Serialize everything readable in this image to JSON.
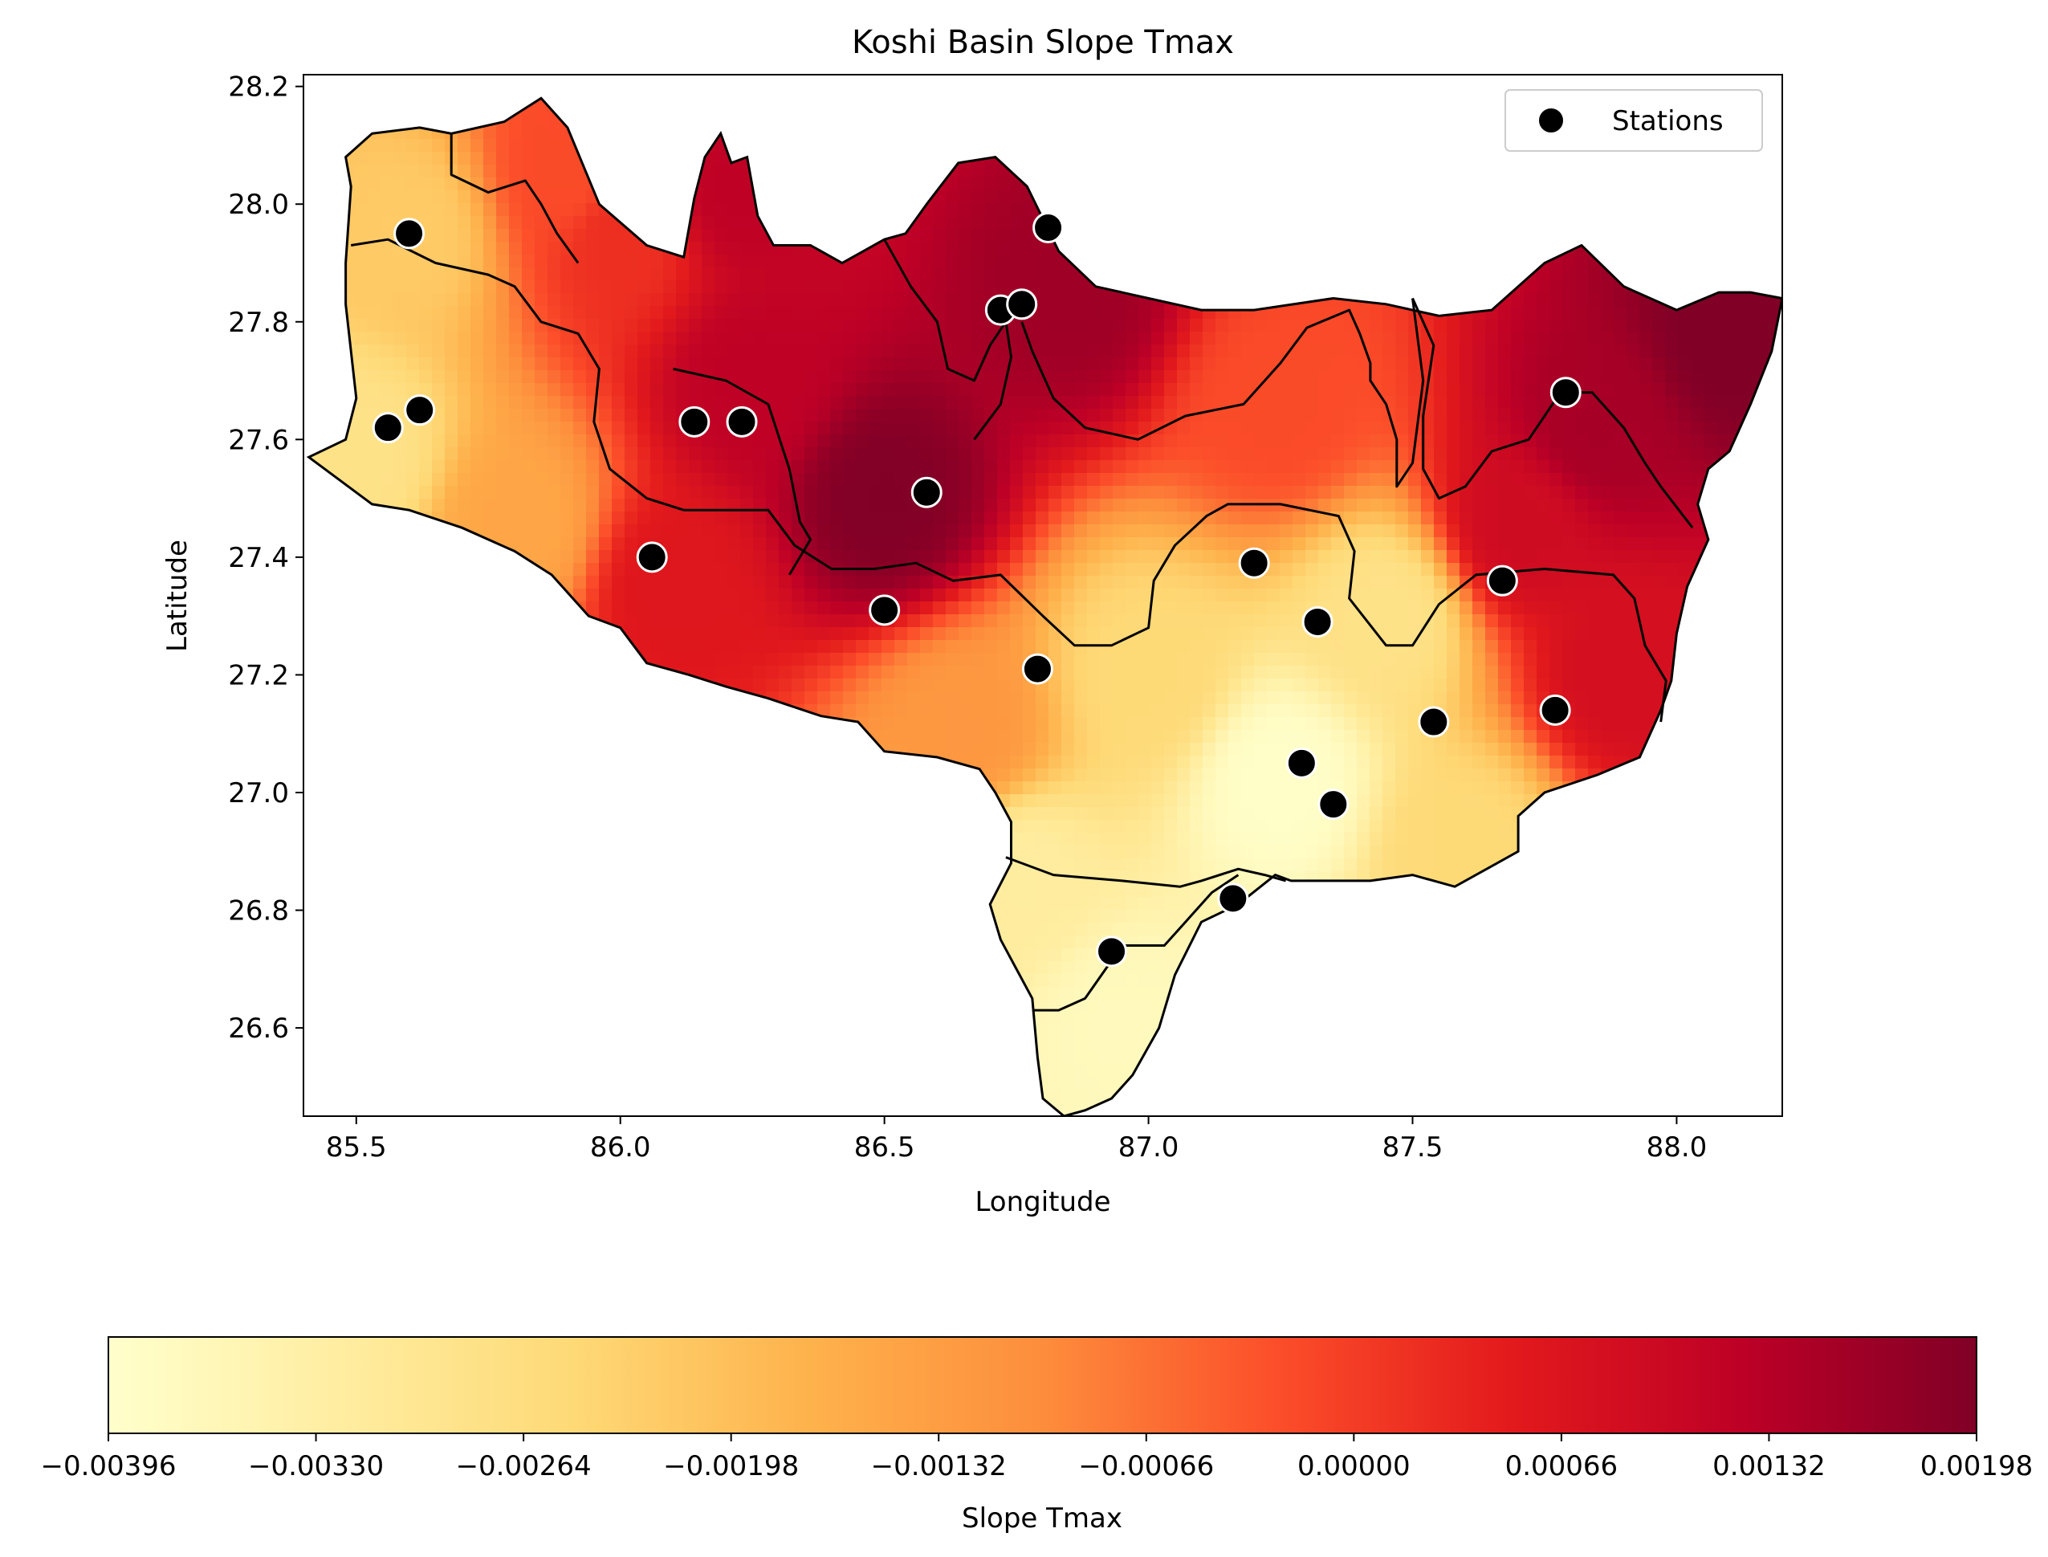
{
  "title": "Koshi Basin Slope Tmax",
  "map": {
    "xlabel": "Longitude",
    "ylabel": "Latitude",
    "xlim": [
      85.4,
      88.2
    ],
    "ylim": [
      26.45,
      28.22
    ],
    "xticks": [
      {
        "value": 85.5,
        "label": "85.5"
      },
      {
        "value": 86.0,
        "label": "86.0"
      },
      {
        "value": 86.5,
        "label": "86.5"
      },
      {
        "value": 87.0,
        "label": "87.0"
      },
      {
        "value": 87.5,
        "label": "87.5"
      },
      {
        "value": 88.0,
        "label": "88.0"
      }
    ],
    "yticks": [
      {
        "value": 26.6,
        "label": "26.6"
      },
      {
        "value": 26.8,
        "label": "26.8"
      },
      {
        "value": 27.0,
        "label": "27.0"
      },
      {
        "value": 27.2,
        "label": "27.2"
      },
      {
        "value": 27.4,
        "label": "27.4"
      },
      {
        "value": 27.6,
        "label": "27.6"
      },
      {
        "value": 27.8,
        "label": "27.8"
      },
      {
        "value": 28.0,
        "label": "28.0"
      },
      {
        "value": 28.2,
        "label": "28.2"
      }
    ],
    "legend": {
      "label": "Stations",
      "position": "upper right",
      "marker_color": "#000000"
    }
  },
  "chart_data": {
    "type": "heatmap",
    "title": "Koshi Basin Slope Tmax",
    "xlabel": "Longitude",
    "ylabel": "Latitude",
    "xlim": [
      85.4,
      88.2
    ],
    "ylim": [
      26.45,
      28.22
    ],
    "colormap": "YlOrRd",
    "value_label": "Slope Tmax",
    "value_range": [
      -0.00396,
      0.00198
    ],
    "basin_boundary": [
      [
        85.41,
        27.57
      ],
      [
        85.48,
        27.6
      ],
      [
        85.5,
        27.67
      ],
      [
        85.48,
        27.83
      ],
      [
        85.48,
        27.9
      ],
      [
        85.49,
        28.03
      ],
      [
        85.48,
        28.08
      ],
      [
        85.53,
        28.12
      ],
      [
        85.62,
        28.13
      ],
      [
        85.68,
        28.12
      ],
      [
        85.78,
        28.14
      ],
      [
        85.85,
        28.18
      ],
      [
        85.9,
        28.13
      ],
      [
        85.96,
        28.0
      ],
      [
        86.05,
        27.93
      ],
      [
        86.12,
        27.91
      ],
      [
        86.14,
        28.01
      ],
      [
        86.16,
        28.08
      ],
      [
        86.19,
        28.12
      ],
      [
        86.21,
        28.07
      ],
      [
        86.24,
        28.08
      ],
      [
        86.26,
        27.98
      ],
      [
        86.29,
        27.93
      ],
      [
        86.36,
        27.93
      ],
      [
        86.42,
        27.9
      ],
      [
        86.5,
        27.94
      ],
      [
        86.54,
        27.95
      ],
      [
        86.58,
        28.0
      ],
      [
        86.64,
        28.07
      ],
      [
        86.71,
        28.08
      ],
      [
        86.77,
        28.03
      ],
      [
        86.83,
        27.92
      ],
      [
        86.9,
        27.86
      ],
      [
        87.0,
        27.84
      ],
      [
        87.1,
        27.82
      ],
      [
        87.2,
        27.82
      ],
      [
        87.35,
        27.84
      ],
      [
        87.45,
        27.83
      ],
      [
        87.55,
        27.81
      ],
      [
        87.65,
        27.82
      ],
      [
        87.75,
        27.9
      ],
      [
        87.82,
        27.93
      ],
      [
        87.9,
        27.86
      ],
      [
        88.0,
        27.82
      ],
      [
        88.08,
        27.85
      ],
      [
        88.14,
        27.85
      ],
      [
        88.2,
        27.84
      ],
      [
        88.18,
        27.75
      ],
      [
        88.14,
        27.66
      ],
      [
        88.1,
        27.58
      ],
      [
        88.06,
        27.55
      ],
      [
        88.04,
        27.49
      ],
      [
        88.06,
        27.43
      ],
      [
        88.02,
        27.35
      ],
      [
        88.0,
        27.27
      ],
      [
        87.99,
        27.19
      ],
      [
        87.97,
        27.14
      ],
      [
        87.93,
        27.06
      ],
      [
        87.85,
        27.03
      ],
      [
        87.75,
        27.0
      ],
      [
        87.7,
        26.96
      ],
      [
        87.7,
        26.9
      ],
      [
        87.66,
        26.88
      ],
      [
        87.58,
        26.84
      ],
      [
        87.5,
        26.86
      ],
      [
        87.42,
        26.85
      ],
      [
        87.35,
        26.85
      ],
      [
        87.27,
        26.85
      ],
      [
        87.24,
        26.86
      ],
      [
        87.17,
        26.81
      ],
      [
        87.1,
        26.78
      ],
      [
        87.05,
        26.69
      ],
      [
        87.02,
        26.6
      ],
      [
        86.97,
        26.52
      ],
      [
        86.93,
        26.48
      ],
      [
        86.88,
        26.46
      ],
      [
        86.84,
        26.45
      ],
      [
        86.8,
        26.48
      ],
      [
        86.79,
        26.55
      ],
      [
        86.78,
        26.65
      ],
      [
        86.72,
        26.75
      ],
      [
        86.7,
        26.81
      ],
      [
        86.74,
        26.88
      ],
      [
        86.74,
        26.95
      ],
      [
        86.71,
        27.0
      ],
      [
        86.68,
        27.04
      ],
      [
        86.6,
        27.06
      ],
      [
        86.5,
        27.07
      ],
      [
        86.45,
        27.12
      ],
      [
        86.38,
        27.13
      ],
      [
        86.28,
        27.16
      ],
      [
        86.2,
        27.18
      ],
      [
        86.13,
        27.2
      ],
      [
        86.05,
        27.22
      ],
      [
        86.0,
        27.28
      ],
      [
        85.94,
        27.3
      ],
      [
        85.87,
        27.37
      ],
      [
        85.8,
        27.41
      ],
      [
        85.7,
        27.45
      ],
      [
        85.6,
        27.48
      ],
      [
        85.53,
        27.49
      ],
      [
        85.47,
        27.53
      ],
      [
        85.41,
        27.57
      ]
    ],
    "internal_boundaries": [
      [
        [
          85.49,
          27.93
        ],
        [
          85.56,
          27.94
        ],
        [
          85.65,
          27.9
        ],
        [
          85.75,
          27.88
        ],
        [
          85.8,
          27.86
        ],
        [
          85.85,
          27.8
        ],
        [
          85.92,
          27.78
        ],
        [
          85.96,
          27.72
        ],
        [
          85.95,
          27.63
        ],
        [
          85.98,
          27.55
        ],
        [
          86.05,
          27.5
        ],
        [
          86.12,
          27.48
        ],
        [
          86.2,
          27.48
        ],
        [
          86.28,
          27.48
        ],
        [
          86.33,
          27.42
        ],
        [
          86.4,
          27.38
        ],
        [
          86.48,
          27.38
        ],
        [
          86.56,
          27.39
        ],
        [
          86.63,
          27.36
        ],
        [
          86.72,
          27.37
        ],
        [
          86.8,
          27.3
        ],
        [
          86.86,
          27.25
        ],
        [
          86.93,
          27.25
        ],
        [
          87.0,
          27.28
        ],
        [
          87.01,
          27.36
        ],
        [
          87.05,
          27.42
        ],
        [
          87.11,
          27.47
        ],
        [
          87.15,
          27.49
        ],
        [
          87.25,
          27.49
        ],
        [
          87.36,
          27.47
        ],
        [
          87.39,
          27.41
        ],
        [
          87.38,
          27.33
        ],
        [
          87.45,
          27.25
        ],
        [
          87.5,
          27.25
        ],
        [
          87.55,
          27.32
        ],
        [
          87.62,
          27.37
        ],
        [
          87.75,
          27.38
        ],
        [
          87.88,
          27.37
        ],
        [
          87.92,
          27.33
        ],
        [
          87.94,
          27.25
        ],
        [
          87.98,
          27.19
        ],
        [
          87.97,
          27.12
        ]
      ],
      [
        [
          85.68,
          28.12
        ],
        [
          85.68,
          28.05
        ],
        [
          85.75,
          28.02
        ],
        [
          85.82,
          28.04
        ],
        [
          85.85,
          28.0
        ],
        [
          85.88,
          27.95
        ],
        [
          85.92,
          27.9
        ]
      ],
      [
        [
          86.1,
          27.72
        ],
        [
          86.2,
          27.7
        ],
        [
          86.28,
          27.66
        ],
        [
          86.32,
          27.55
        ],
        [
          86.34,
          27.46
        ],
        [
          86.36,
          27.43
        ],
        [
          86.32,
          27.37
        ]
      ],
      [
        [
          86.5,
          27.94
        ],
        [
          86.55,
          27.86
        ],
        [
          86.6,
          27.8
        ],
        [
          86.62,
          27.72
        ],
        [
          86.67,
          27.7
        ],
        [
          86.7,
          27.76
        ],
        [
          86.73,
          27.8
        ],
        [
          86.74,
          27.74
        ],
        [
          86.72,
          27.66
        ],
        [
          86.67,
          27.6
        ]
      ],
      [
        [
          86.76,
          27.8
        ],
        [
          86.78,
          27.75
        ],
        [
          86.82,
          27.67
        ],
        [
          86.88,
          27.62
        ],
        [
          86.98,
          27.6
        ],
        [
          87.07,
          27.64
        ],
        [
          87.18,
          27.66
        ],
        [
          87.25,
          27.73
        ],
        [
          87.3,
          27.79
        ],
        [
          87.38,
          27.82
        ],
        [
          87.4,
          27.78
        ],
        [
          87.42,
          27.73
        ],
        [
          87.42,
          27.7
        ],
        [
          87.45,
          27.66
        ],
        [
          87.47,
          27.6
        ],
        [
          87.47,
          27.52
        ],
        [
          87.5,
          27.56
        ],
        [
          87.52,
          27.7
        ],
        [
          87.5,
          27.84
        ]
      ],
      [
        [
          87.5,
          27.84
        ],
        [
          87.54,
          27.76
        ],
        [
          87.52,
          27.64
        ],
        [
          87.52,
          27.55
        ],
        [
          87.55,
          27.5
        ],
        [
          87.6,
          27.52
        ],
        [
          87.65,
          27.58
        ],
        [
          87.72,
          27.6
        ],
        [
          87.78,
          27.68
        ],
        [
          87.84,
          27.68
        ],
        [
          87.9,
          27.62
        ],
        [
          87.94,
          27.56
        ],
        [
          87.97,
          27.52
        ],
        [
          88.03,
          27.45
        ]
      ],
      [
        [
          86.73,
          26.89
        ],
        [
          86.82,
          26.86
        ],
        [
          86.95,
          26.85
        ],
        [
          87.06,
          26.84
        ],
        [
          87.1,
          26.85
        ],
        [
          87.17,
          26.87
        ],
        [
          87.22,
          26.86
        ],
        [
          87.26,
          26.85
        ]
      ],
      [
        [
          86.78,
          26.63
        ],
        [
          86.83,
          26.63
        ],
        [
          86.88,
          26.65
        ],
        [
          86.95,
          26.74
        ],
        [
          87.03,
          26.74
        ],
        [
          87.07,
          26.78
        ],
        [
          87.12,
          26.83
        ],
        [
          87.17,
          26.86
        ]
      ]
    ],
    "stations": [
      {
        "lon": 85.6,
        "lat": 27.95
      },
      {
        "lon": 85.56,
        "lat": 27.62
      },
      {
        "lon": 85.62,
        "lat": 27.65
      },
      {
        "lon": 86.06,
        "lat": 27.4
      },
      {
        "lon": 86.14,
        "lat": 27.63
      },
      {
        "lon": 86.23,
        "lat": 27.63
      },
      {
        "lon": 86.5,
        "lat": 27.31
      },
      {
        "lon": 86.58,
        "lat": 27.51
      },
      {
        "lon": 86.72,
        "lat": 27.82
      },
      {
        "lon": 86.76,
        "lat": 27.83
      },
      {
        "lon": 86.81,
        "lat": 27.96
      },
      {
        "lon": 86.79,
        "lat": 27.21
      },
      {
        "lon": 86.93,
        "lat": 26.73
      },
      {
        "lon": 87.16,
        "lat": 26.82
      },
      {
        "lon": 87.2,
        "lat": 27.39
      },
      {
        "lon": 87.29,
        "lat": 27.05
      },
      {
        "lon": 87.32,
        "lat": 27.29
      },
      {
        "lon": 87.35,
        "lat": 26.98
      },
      {
        "lon": 87.54,
        "lat": 27.12
      },
      {
        "lon": 87.67,
        "lat": 27.36
      },
      {
        "lon": 87.77,
        "lat": 27.14
      },
      {
        "lon": 87.79,
        "lat": 27.68
      }
    ],
    "field_anchors": [
      {
        "lon": 86.5,
        "lat": 27.5,
        "value": 0.00195
      },
      {
        "lon": 88.1,
        "lat": 27.78,
        "value": 0.00198
      },
      {
        "lon": 87.85,
        "lat": 27.62,
        "value": 0.0015
      },
      {
        "lon": 86.85,
        "lat": 27.85,
        "value": 0.0016
      },
      {
        "lon": 86.25,
        "lat": 27.7,
        "value": 0.0012
      },
      {
        "lon": 86.1,
        "lat": 27.35,
        "value": 0.0006
      },
      {
        "lon": 86.22,
        "lat": 28.03,
        "value": 0.0012
      },
      {
        "lon": 86.0,
        "lat": 27.95,
        "value": 0.0002
      },
      {
        "lon": 85.9,
        "lat": 28.05,
        "value": -0.0002
      },
      {
        "lon": 85.6,
        "lat": 27.95,
        "value": -0.0022
      },
      {
        "lon": 85.5,
        "lat": 27.57,
        "value": -0.0028
      },
      {
        "lon": 85.8,
        "lat": 27.45,
        "value": -0.0015
      },
      {
        "lon": 87.25,
        "lat": 27.65,
        "value": -0.0002
      },
      {
        "lon": 87.25,
        "lat": 27.02,
        "value": -0.0039
      },
      {
        "lon": 87.0,
        "lat": 27.2,
        "value": -0.0025
      },
      {
        "lon": 86.95,
        "lat": 26.6,
        "value": -0.0037
      },
      {
        "lon": 86.75,
        "lat": 26.85,
        "value": -0.0032
      },
      {
        "lon": 87.6,
        "lat": 26.9,
        "value": -0.0025
      },
      {
        "lon": 87.9,
        "lat": 27.2,
        "value": 0.0008
      },
      {
        "lon": 87.7,
        "lat": 27.45,
        "value": 0.0009
      },
      {
        "lon": 86.65,
        "lat": 27.1,
        "value": -0.0012
      },
      {
        "lon": 87.45,
        "lat": 27.3,
        "value": -0.0028
      }
    ]
  },
  "colorbar": {
    "label": "Slope Tmax",
    "min": -0.00396,
    "max": 0.00198,
    "ticks": [
      {
        "value": -0.00396,
        "label": "−0.00396"
      },
      {
        "value": -0.0033,
        "label": "−0.00330"
      },
      {
        "value": -0.00264,
        "label": "−0.00264"
      },
      {
        "value": -0.00198,
        "label": "−0.00198"
      },
      {
        "value": -0.00132,
        "label": "−0.00132"
      },
      {
        "value": -0.00066,
        "label": "−0.00066"
      },
      {
        "value": 0.0,
        "label": "0.00000"
      },
      {
        "value": 0.00066,
        "label": "0.00066"
      },
      {
        "value": 0.00132,
        "label": "0.00132"
      },
      {
        "value": 0.00198,
        "label": "0.00198"
      }
    ],
    "colors": [
      "#ffffcc",
      "#ffeda0",
      "#fed976",
      "#feb24c",
      "#fd8d3c",
      "#fc4e2a",
      "#e31a1c",
      "#bd0026",
      "#800026"
    ]
  }
}
